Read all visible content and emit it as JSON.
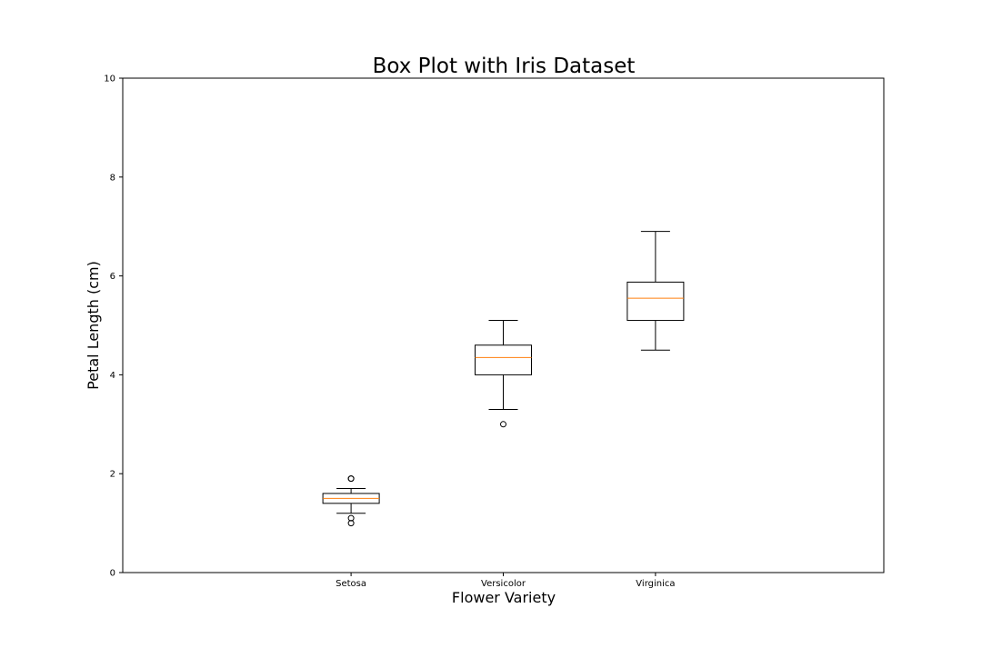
{
  "chart_data": {
    "type": "box",
    "title": "Box Plot with Iris Dataset",
    "xlabel": "Flower Variety",
    "ylabel": "Petal Length (cm)",
    "ylim": [
      0,
      10
    ],
    "yticks": [
      0,
      2,
      4,
      6,
      8,
      10
    ],
    "xlim": [
      -0.5,
      4.5
    ],
    "grid": false,
    "legend": "none",
    "colors": {
      "box": "#000000",
      "median": "#ff7f0e",
      "flier": "#000000",
      "frame": "#000000"
    },
    "categories": [
      "Setosa",
      "Versicolor",
      "Virginica"
    ],
    "boxes": [
      {
        "category": "Setosa",
        "position": 1,
        "whisker_low": 1.2,
        "q1": 1.4,
        "median": 1.5,
        "q3": 1.6,
        "whisker_high": 1.7,
        "fliers": [
          1.0,
          1.1,
          1.9,
          1.9
        ]
      },
      {
        "category": "Versicolor",
        "position": 2,
        "whisker_low": 3.3,
        "q1": 4.0,
        "median": 4.35,
        "q3": 4.6,
        "whisker_high": 5.1,
        "fliers": [
          3.0
        ]
      },
      {
        "category": "Virginica",
        "position": 3,
        "whisker_low": 4.5,
        "q1": 5.1,
        "median": 5.55,
        "q3": 5.875,
        "whisker_high": 6.9,
        "fliers": []
      }
    ]
  }
}
